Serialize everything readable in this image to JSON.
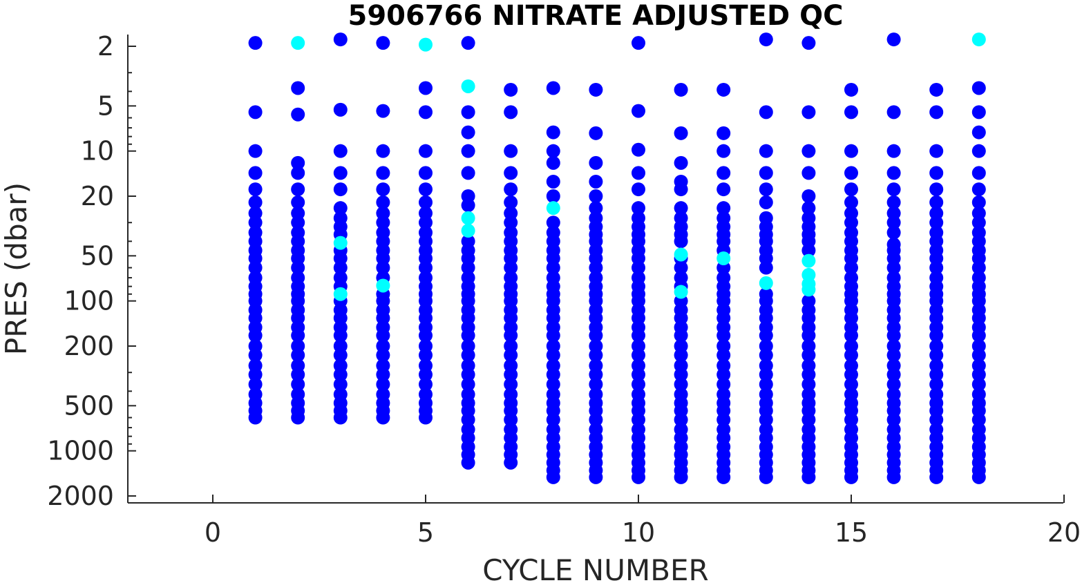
{
  "chart_data": {
    "type": "scatter",
    "title": "5906766  NITRATE ADJUSTED QC",
    "xlabel": "CYCLE NUMBER",
    "ylabel": "PRES (dbar)",
    "xlim": [
      -2,
      20
    ],
    "ylim": [
      2000,
      1.7
    ],
    "y_scale": "log",
    "y_reversed": true,
    "grid": false,
    "legend": "none",
    "xticks": [
      0,
      5,
      10,
      15,
      20
    ],
    "yticks": [
      2,
      5,
      10,
      20,
      50,
      100,
      200,
      500,
      1000,
      2000
    ],
    "colors": {
      "good": "#0000ff",
      "probably_good": "#00ffff",
      "axis": "#262626"
    },
    "series": [
      {
        "qc": "good",
        "color": "#0000ff",
        "profiles": [
          {
            "cycle": 1,
            "pressures": [
              1.9,
              5.5,
              10,
              14,
              18,
              22,
              26,
              30,
              35,
              40,
              46,
              52,
              60,
              70,
              80,
              90,
              100,
              115,
              130,
              150,
              170,
              200,
              230,
              270,
              310,
              360,
              420,
              480,
              540,
              600
            ]
          },
          {
            "cycle": 2,
            "pressures": [
              3.8,
              5.7,
              12,
              14,
              18,
              22,
              26,
              30,
              35,
              40,
              46,
              52,
              60,
              70,
              80,
              90,
              100,
              115,
              130,
              150,
              170,
              200,
              230,
              270,
              310,
              360,
              420,
              480,
              540,
              600
            ]
          },
          {
            "cycle": 3,
            "pressures": [
              1.8,
              5.3,
              10,
              14,
              18,
              24,
              28,
              32,
              36,
              46,
              52,
              60,
              70,
              80,
              100,
              115,
              130,
              150,
              170,
              200,
              230,
              270,
              310,
              360,
              420,
              480,
              540,
              600
            ]
          },
          {
            "cycle": 4,
            "pressures": [
              1.9,
              5.4,
              10,
              14,
              18,
              22,
              26,
              30,
              35,
              40,
              46,
              52,
              60,
              70,
              90,
              100,
              115,
              130,
              150,
              170,
              200,
              230,
              270,
              310,
              360,
              420,
              480,
              540,
              600
            ]
          },
          {
            "cycle": 5,
            "pressures": [
              3.8,
              5.5,
              10,
              14,
              18,
              22,
              26,
              30,
              35,
              40,
              46,
              52,
              60,
              70,
              80,
              90,
              100,
              115,
              130,
              150,
              170,
              200,
              230,
              270,
              310,
              360,
              420,
              480,
              540,
              600
            ]
          },
          {
            "cycle": 6,
            "pressures": [
              1.9,
              5.5,
              7.5,
              10,
              14,
              20,
              23,
              40,
              46,
              52,
              60,
              70,
              80,
              90,
              100,
              115,
              130,
              150,
              170,
              200,
              230,
              270,
              310,
              360,
              420,
              480,
              540,
              620,
              720,
              820,
              940,
              1060,
              1200
            ]
          },
          {
            "cycle": 7,
            "pressures": [
              3.9,
              5.5,
              10,
              14,
              18,
              22,
              26,
              30,
              35,
              40,
              46,
              52,
              60,
              70,
              80,
              90,
              100,
              115,
              130,
              150,
              170,
              200,
              230,
              270,
              310,
              360,
              420,
              480,
              540,
              620,
              720,
              820,
              940,
              1060,
              1200
            ]
          },
          {
            "cycle": 8,
            "pressures": [
              3.8,
              7.5,
              10,
              12,
              16,
              20,
              30,
              35,
              40,
              46,
              52,
              60,
              70,
              80,
              90,
              100,
              115,
              130,
              150,
              170,
              200,
              230,
              270,
              310,
              360,
              420,
              480,
              540,
              620,
              720,
              820,
              940,
              1060,
              1200,
              1350,
              1500
            ]
          },
          {
            "cycle": 9,
            "pressures": [
              3.9,
              7.6,
              12,
              16,
              20,
              24,
              28,
              32,
              36,
              40,
              46,
              52,
              60,
              70,
              80,
              90,
              100,
              115,
              130,
              150,
              170,
              200,
              230,
              270,
              310,
              360,
              420,
              480,
              540,
              620,
              720,
              820,
              940,
              1060,
              1200,
              1350,
              1500
            ]
          },
          {
            "cycle": 10,
            "pressures": [
              1.9,
              5.4,
              9.8,
              14,
              18,
              24,
              28,
              32,
              36,
              40,
              46,
              52,
              60,
              70,
              80,
              90,
              100,
              115,
              130,
              150,
              170,
              200,
              230,
              270,
              310,
              360,
              420,
              480,
              540,
              620,
              720,
              820,
              940,
              1060,
              1200,
              1350,
              1500
            ]
          },
          {
            "cycle": 11,
            "pressures": [
              3.9,
              7.6,
              12,
              16,
              18,
              24,
              28,
              32,
              36,
              40,
              52,
              60,
              70,
              80,
              100,
              115,
              130,
              150,
              170,
              200,
              230,
              270,
              310,
              360,
              420,
              480,
              540,
              620,
              720,
              820,
              940,
              1060,
              1200,
              1350,
              1500
            ]
          },
          {
            "cycle": 12,
            "pressures": [
              3.9,
              7.6,
              10,
              14,
              18,
              24,
              28,
              32,
              36,
              40,
              46,
              60,
              70,
              80,
              90,
              100,
              115,
              130,
              150,
              170,
              200,
              230,
              270,
              310,
              360,
              420,
              480,
              540,
              620,
              720,
              820,
              940,
              1060,
              1200,
              1350,
              1500
            ]
          },
          {
            "cycle": 13,
            "pressures": [
              1.8,
              5.5,
              10,
              14,
              18,
              22,
              28,
              32,
              36,
              40,
              46,
              52,
              60,
              90,
              100,
              115,
              130,
              150,
              170,
              200,
              230,
              270,
              310,
              360,
              420,
              480,
              540,
              620,
              720,
              820,
              940,
              1060,
              1200,
              1350,
              1500
            ]
          },
          {
            "cycle": 14,
            "pressures": [
              1.9,
              5.5,
              10,
              14,
              20,
              24,
              28,
              32,
              36,
              40,
              46,
              100,
              115,
              130,
              150,
              170,
              200,
              230,
              270,
              310,
              360,
              420,
              480,
              540,
              620,
              720,
              820,
              940,
              1060,
              1200,
              1350,
              1500
            ]
          },
          {
            "cycle": 15,
            "pressures": [
              3.9,
              5.5,
              10,
              14,
              18,
              22,
              26,
              30,
              35,
              40,
              46,
              52,
              60,
              70,
              80,
              90,
              100,
              115,
              130,
              150,
              170,
              200,
              230,
              270,
              310,
              360,
              420,
              480,
              540,
              620,
              720,
              820,
              940,
              1060,
              1200,
              1350,
              1500
            ]
          },
          {
            "cycle": 16,
            "pressures": [
              1.8,
              5.5,
              10,
              14,
              18,
              22,
              26,
              30,
              35,
              42,
              46,
              52,
              60,
              70,
              80,
              90,
              100,
              115,
              130,
              150,
              170,
              200,
              230,
              270,
              310,
              360,
              420,
              480,
              540,
              620,
              720,
              820,
              940,
              1060,
              1200,
              1350,
              1500
            ]
          },
          {
            "cycle": 17,
            "pressures": [
              3.9,
              5.5,
              10,
              14,
              18,
              22,
              26,
              30,
              35,
              40,
              46,
              52,
              60,
              70,
              80,
              90,
              100,
              115,
              130,
              150,
              170,
              200,
              230,
              270,
              310,
              360,
              420,
              480,
              540,
              620,
              720,
              820,
              940,
              1060,
              1200,
              1350,
              1500
            ]
          },
          {
            "cycle": 18,
            "pressures": [
              3.8,
              5.5,
              7.5,
              10,
              14,
              18,
              22,
              26,
              30,
              35,
              40,
              46,
              52,
              60,
              70,
              80,
              90,
              100,
              115,
              130,
              150,
              170,
              200,
              230,
              270,
              310,
              360,
              420,
              480,
              540,
              620,
              720,
              820,
              940,
              1060,
              1200,
              1350,
              1500
            ]
          }
        ]
      },
      {
        "qc": "probably_good",
        "color": "#00ffff",
        "points": [
          {
            "cycle": 2,
            "pressure": 1.9
          },
          {
            "cycle": 5,
            "pressure": 1.95
          },
          {
            "cycle": 18,
            "pressure": 1.8
          },
          {
            "cycle": 6,
            "pressure": 3.7
          },
          {
            "cycle": 8,
            "pressure": 24
          },
          {
            "cycle": 6,
            "pressure": 28
          },
          {
            "cycle": 6,
            "pressure": 34
          },
          {
            "cycle": 3,
            "pressure": 41
          },
          {
            "cycle": 11,
            "pressure": 49
          },
          {
            "cycle": 12,
            "pressure": 52
          },
          {
            "cycle": 14,
            "pressure": 54
          },
          {
            "cycle": 14,
            "pressure": 67
          },
          {
            "cycle": 13,
            "pressure": 76
          },
          {
            "cycle": 4,
            "pressure": 79
          },
          {
            "cycle": 14,
            "pressure": 77
          },
          {
            "cycle": 14,
            "pressure": 84
          },
          {
            "cycle": 11,
            "pressure": 87
          },
          {
            "cycle": 3,
            "pressure": 90
          }
        ]
      }
    ]
  }
}
